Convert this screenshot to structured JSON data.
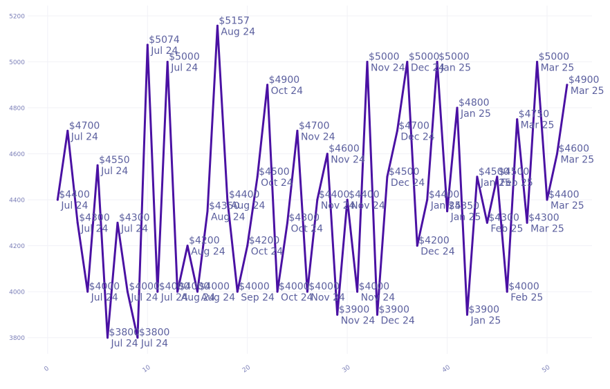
{
  "chart_data": {
    "type": "line",
    "title": "",
    "xlabel": "",
    "ylabel": "",
    "xlim": [
      -2,
      54.5
    ],
    "ylim": [
      3730,
      5245
    ],
    "xticks": [
      0,
      10,
      20,
      30,
      40,
      50
    ],
    "yticks": [
      3800,
      4000,
      4200,
      4400,
      4600,
      4800,
      5000,
      5200
    ],
    "grid": true,
    "series": [
      {
        "color": "#4a11a3",
        "points": [
          {
            "x": 1,
            "y": 4400,
            "price": "$4400",
            "month": "Jul 24"
          },
          {
            "x": 2,
            "y": 4700,
            "price": "$4700",
            "month": "Jul 24"
          },
          {
            "x": 3,
            "y": 4300,
            "price": "$4300",
            "month": "Jul 24"
          },
          {
            "x": 4,
            "y": 4000,
            "price": "$4000",
            "month": "Jul 24"
          },
          {
            "x": 5,
            "y": 4550,
            "price": "$4550",
            "month": "Jul 24"
          },
          {
            "x": 6,
            "y": 3800,
            "price": "$3800",
            "month": "Jul 24"
          },
          {
            "x": 7,
            "y": 4300,
            "price": "$4300",
            "month": "Jul 24"
          },
          {
            "x": 8,
            "y": 4000,
            "price": "$4000",
            "month": "Jul 24"
          },
          {
            "x": 9,
            "y": 3800,
            "price": "$3800",
            "month": "Jul 24"
          },
          {
            "x": 10,
            "y": 5074,
            "price": "$5074",
            "month": "Jul 24"
          },
          {
            "x": 11,
            "y": 4000,
            "price": "$4000",
            "month": "Jul 24"
          },
          {
            "x": 12,
            "y": 5000,
            "price": "$5000",
            "month": "Jul 24"
          },
          {
            "x": 13,
            "y": 4000,
            "price": "$4000",
            "month": "Aug 24"
          },
          {
            "x": 14,
            "y": 4200,
            "price": "$4200",
            "month": "Aug 24"
          },
          {
            "x": 15,
            "y": 4000,
            "price": "$4000",
            "month": "Aug 24"
          },
          {
            "x": 16,
            "y": 4350,
            "price": "$4350",
            "month": "Aug 24"
          },
          {
            "x": 17,
            "y": 5157,
            "price": "$5157",
            "month": "Aug 24"
          },
          {
            "x": 18,
            "y": 4400,
            "price": "$4400",
            "month": "Aug 24"
          },
          {
            "x": 19,
            "y": 4000,
            "price": "$4000",
            "month": "Sep 24"
          },
          {
            "x": 20,
            "y": 4200,
            "price": "$4200",
            "month": "Oct 24"
          },
          {
            "x": 21,
            "y": 4500,
            "price": "$4500",
            "month": "Oct 24"
          },
          {
            "x": 22,
            "y": 4900,
            "price": "$4900",
            "month": "Oct 24"
          },
          {
            "x": 23,
            "y": 4000,
            "price": "$4000",
            "month": "Oct 24"
          },
          {
            "x": 24,
            "y": 4300,
            "price": "$4300",
            "month": "Oct 24"
          },
          {
            "x": 25,
            "y": 4700,
            "price": "$4700",
            "month": "Nov 24"
          },
          {
            "x": 26,
            "y": 4000,
            "price": "$4000",
            "month": "Nov 24"
          },
          {
            "x": 27,
            "y": 4400,
            "price": "$4400",
            "month": "Nov 24"
          },
          {
            "x": 28,
            "y": 4600,
            "price": "$4600",
            "month": "Nov 24"
          },
          {
            "x": 29,
            "y": 3900,
            "price": "$3900",
            "month": "Nov 24"
          },
          {
            "x": 30,
            "y": 4400,
            "price": "$4400",
            "month": "Nov 24"
          },
          {
            "x": 31,
            "y": 4000,
            "price": "$4000",
            "month": "Nov 24"
          },
          {
            "x": 32,
            "y": 5000,
            "price": "$5000",
            "month": "Nov 24"
          },
          {
            "x": 33,
            "y": 3900,
            "price": "$3900",
            "month": "Dec 24"
          },
          {
            "x": 34,
            "y": 4500,
            "price": "$4500",
            "month": "Dec 24"
          },
          {
            "x": 35,
            "y": 4700,
            "price": "$4700",
            "month": "Dec 24"
          },
          {
            "x": 36,
            "y": 5000,
            "price": "$5000",
            "month": "Dec 24"
          },
          {
            "x": 37,
            "y": 4200,
            "price": "$4200",
            "month": "Dec 24"
          },
          {
            "x": 38,
            "y": 4400,
            "price": "$4400",
            "month": "Jan 25"
          },
          {
            "x": 39,
            "y": 5000,
            "price": "$5000",
            "month": "Jan 25"
          },
          {
            "x": 40,
            "y": 4350,
            "price": "$4350",
            "month": "Jan 25"
          },
          {
            "x": 41,
            "y": 4800,
            "price": "$4800",
            "month": "Jan 25"
          },
          {
            "x": 42,
            "y": 3900,
            "price": "$3900",
            "month": "Jan 25"
          },
          {
            "x": 43,
            "y": 4500,
            "price": "$4500",
            "month": "Jan 25"
          },
          {
            "x": 44,
            "y": 4300,
            "price": "$4300",
            "month": "Feb 25"
          },
          {
            "x": 45,
            "y": 4500,
            "price": "$4500",
            "month": "Feb 25"
          },
          {
            "x": 46,
            "y": 4000,
            "price": "$4000",
            "month": "Feb 25"
          },
          {
            "x": 47,
            "y": 4750,
            "price": "$4750",
            "month": "Mar 25"
          },
          {
            "x": 48,
            "y": 4300,
            "price": "$4300",
            "month": "Mar 25"
          },
          {
            "x": 49,
            "y": 5000,
            "price": "$5000",
            "month": "Mar 25"
          },
          {
            "x": 50,
            "y": 4400,
            "price": "$4400",
            "month": "Mar 25"
          },
          {
            "x": 51,
            "y": 4600,
            "price": "$4600",
            "month": "Mar 25"
          },
          {
            "x": 52,
            "y": 4900,
            "price": "$4900",
            "month": "Mar 25"
          }
        ]
      }
    ]
  },
  "colors": {
    "line": "#4a11a3",
    "label_text": "#5b5f9e",
    "tick_text": "#7b7fb8",
    "grid": "#f1f1f6"
  }
}
